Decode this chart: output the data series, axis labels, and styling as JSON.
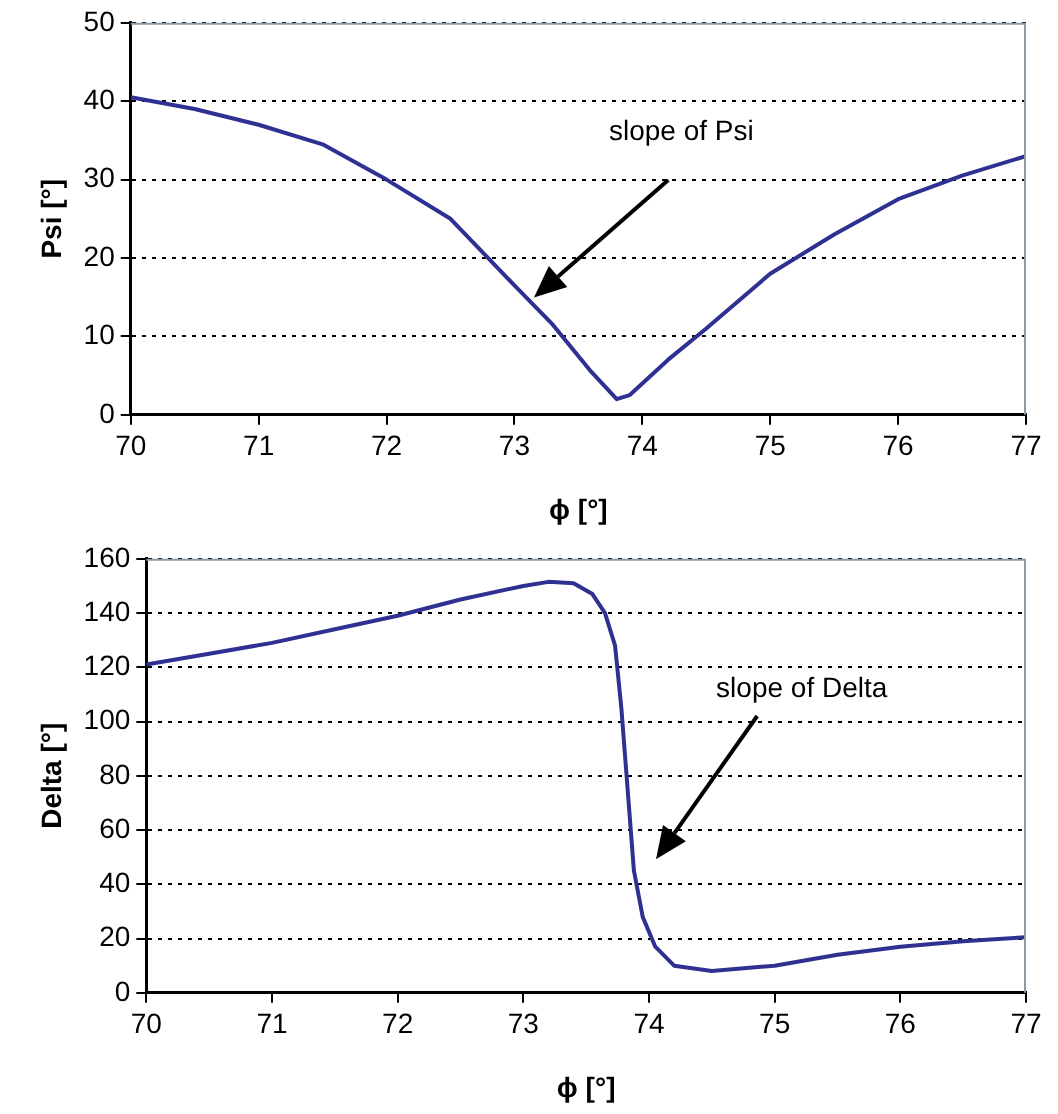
{
  "chart_data": [
    {
      "type": "line",
      "xlabel": "ϕ [°]",
      "ylabel": "Psi [°]",
      "xlim": [
        70,
        77
      ],
      "xticks": [
        70,
        71,
        72,
        73,
        74,
        75,
        76,
        77
      ],
      "ylim": [
        0,
        50
      ],
      "yticks": [
        0,
        10,
        20,
        30,
        40,
        50
      ],
      "grid": "y",
      "legend": false,
      "marker": "none",
      "line_style": "solid",
      "annotations": [
        "slope of Psi"
      ],
      "series": [
        {
          "color": "#2e3192",
          "x": [
            70,
            70.5,
            71,
            71.5,
            72,
            72.5,
            73,
            73.3,
            73.6,
            73.8,
            73.9,
            74.2,
            74.5,
            75,
            75.5,
            76,
            76.5,
            77
          ],
          "values": [
            40.5,
            39,
            37,
            34.5,
            30,
            25,
            16.5,
            11.5,
            5.5,
            2,
            2.5,
            7,
            11,
            18,
            23,
            27.5,
            30.5,
            33
          ]
        }
      ]
    },
    {
      "type": "line",
      "xlabel": "ϕ [°]",
      "ylabel": "Delta [°]",
      "xlim": [
        70,
        77
      ],
      "xticks": [
        70,
        71,
        72,
        73,
        74,
        75,
        76,
        77
      ],
      "ylim": [
        0,
        160
      ],
      "yticks": [
        0,
        20,
        40,
        60,
        80,
        100,
        120,
        140,
        160
      ],
      "grid": "y",
      "legend": false,
      "marker": "none",
      "line_style": "solid",
      "annotations": [
        "slope of Delta"
      ],
      "series": [
        {
          "color": "#2e3192",
          "x": [
            70,
            70.5,
            71,
            71.5,
            72,
            72.5,
            73,
            73.2,
            73.4,
            73.55,
            73.65,
            73.73,
            73.78,
            73.83,
            73.88,
            73.95,
            74.05,
            74.2,
            74.5,
            75,
            75.5,
            76,
            76.5,
            77
          ],
          "values": [
            121,
            125,
            129,
            134,
            139,
            145,
            150,
            151.5,
            151,
            147,
            140,
            128,
            105,
            75,
            45,
            28,
            17,
            10,
            8,
            10,
            14,
            17,
            19,
            20.5
          ]
        }
      ]
    }
  ]
}
